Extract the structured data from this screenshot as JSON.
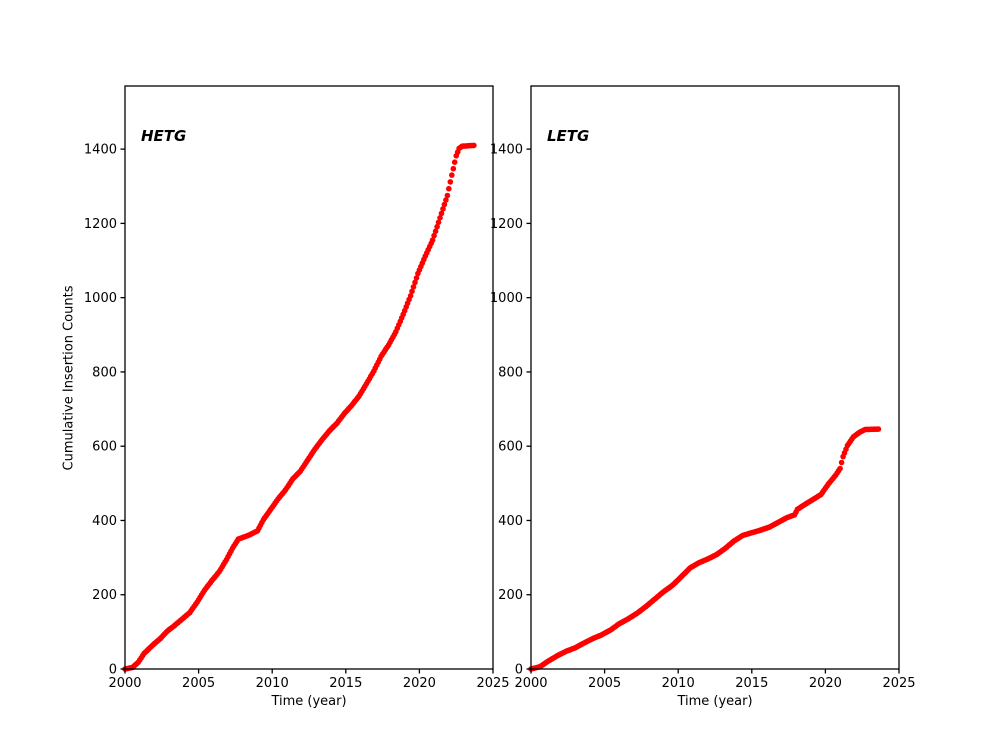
{
  "figure": {
    "background": "#ffffff",
    "text_color": "#000000",
    "marker_color": "#ff0000"
  },
  "chart_data": [
    {
      "type": "scatter",
      "title": "HETG",
      "xlabel": "Time (year)",
      "ylabel": "Cumulative Insertion Counts",
      "xlim": [
        2000,
        2025
      ],
      "ylim": [
        0,
        1570
      ],
      "xticks": [
        2000,
        2005,
        2010,
        2015,
        2020,
        2025
      ],
      "yticks": [
        0,
        200,
        400,
        600,
        800,
        1000,
        1200,
        1400
      ],
      "grid": false,
      "legend": "none",
      "marker_color": "#ff0000",
      "points": [
        [
          2000.0,
          0
        ],
        [
          2000.5,
          4
        ],
        [
          2000.9,
          18
        ],
        [
          2001.3,
          42
        ],
        [
          2001.9,
          65
        ],
        [
          2002.4,
          82
        ],
        [
          2002.9,
          103
        ],
        [
          2003.3,
          115
        ],
        [
          2003.9,
          135
        ],
        [
          2004.4,
          152
        ],
        [
          2004.9,
          180
        ],
        [
          2005.4,
          212
        ],
        [
          2005.9,
          238
        ],
        [
          2006.4,
          262
        ],
        [
          2006.9,
          295
        ],
        [
          2007.3,
          325
        ],
        [
          2007.7,
          350
        ],
        [
          2008.4,
          360
        ],
        [
          2009.0,
          372
        ],
        [
          2009.4,
          402
        ],
        [
          2009.9,
          430
        ],
        [
          2010.4,
          458
        ],
        [
          2010.9,
          482
        ],
        [
          2011.4,
          512
        ],
        [
          2011.9,
          532
        ],
        [
          2012.4,
          562
        ],
        [
          2012.9,
          592
        ],
        [
          2013.4,
          618
        ],
        [
          2013.9,
          642
        ],
        [
          2014.4,
          662
        ],
        [
          2014.9,
          688
        ],
        [
          2015.4,
          710
        ],
        [
          2015.9,
          735
        ],
        [
          2016.4,
          768
        ],
        [
          2016.9,
          802
        ],
        [
          2017.4,
          842
        ],
        [
          2017.9,
          872
        ],
        [
          2018.4,
          908
        ],
        [
          2018.9,
          955
        ],
        [
          2019.4,
          1005
        ],
        [
          2019.9,
          1065
        ],
        [
          2020.4,
          1112
        ],
        [
          2020.9,
          1155
        ],
        [
          2021.4,
          1215
        ],
        [
          2021.9,
          1275
        ],
        [
          2022.2,
          1330
        ],
        [
          2022.5,
          1382
        ],
        [
          2022.7,
          1402
        ],
        [
          2022.9,
          1408
        ],
        [
          2023.7,
          1410
        ]
      ]
    },
    {
      "type": "scatter",
      "title": "LETG",
      "xlabel": "Time (year)",
      "ylabel": "",
      "xlim": [
        2000,
        2025
      ],
      "ylim": [
        0,
        1570
      ],
      "xticks": [
        2000,
        2005,
        2010,
        2015,
        2020,
        2025
      ],
      "yticks": [
        0,
        200,
        400,
        600,
        800,
        1000,
        1200,
        1400
      ],
      "grid": false,
      "legend": "none",
      "marker_color": "#ff0000",
      "points": [
        [
          2000.0,
          0
        ],
        [
          2000.6,
          6
        ],
        [
          2001.2,
          22
        ],
        [
          2001.8,
          36
        ],
        [
          2002.4,
          48
        ],
        [
          2003.0,
          57
        ],
        [
          2003.6,
          70
        ],
        [
          2004.2,
          82
        ],
        [
          2004.8,
          92
        ],
        [
          2005.4,
          105
        ],
        [
          2006.0,
          122
        ],
        [
          2006.6,
          135
        ],
        [
          2007.2,
          150
        ],
        [
          2007.8,
          168
        ],
        [
          2008.4,
          188
        ],
        [
          2009.0,
          208
        ],
        [
          2009.6,
          225
        ],
        [
          2010.2,
          248
        ],
        [
          2010.8,
          272
        ],
        [
          2011.4,
          286
        ],
        [
          2012.0,
          296
        ],
        [
          2012.6,
          308
        ],
        [
          2013.2,
          325
        ],
        [
          2013.8,
          345
        ],
        [
          2014.4,
          360
        ],
        [
          2015.0,
          367
        ],
        [
          2015.6,
          374
        ],
        [
          2016.2,
          382
        ],
        [
          2016.8,
          395
        ],
        [
          2017.4,
          408
        ],
        [
          2017.9,
          415
        ],
        [
          2018.1,
          430
        ],
        [
          2018.6,
          443
        ],
        [
          2019.1,
          455
        ],
        [
          2019.7,
          470
        ],
        [
          2020.2,
          498
        ],
        [
          2020.7,
          522
        ],
        [
          2021.0,
          540
        ],
        [
          2021.2,
          572
        ],
        [
          2021.5,
          602
        ],
        [
          2021.9,
          625
        ],
        [
          2022.3,
          637
        ],
        [
          2022.7,
          645
        ],
        [
          2023.6,
          646
        ]
      ]
    }
  ]
}
